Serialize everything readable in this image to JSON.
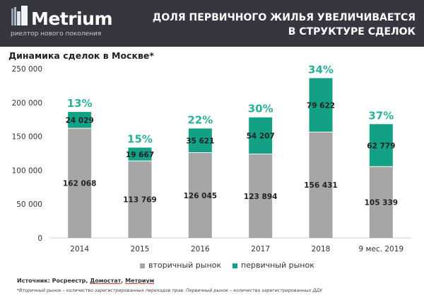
{
  "header": {
    "logo": "Metrium",
    "logo_tagline": "риелтор нового поколения",
    "title_line1": "ДОЛЯ ПЕРВИЧНОГО ЖИЛЬЯ УВЕЛИЧИВАЕТСЯ",
    "title_line2": "В СТРУКТУРЕ СДЕЛОК"
  },
  "colors": {
    "secondary": "#a6a6a6",
    "primary": "#12a185",
    "percent": "#2bb19a",
    "header_bg": "#363640"
  },
  "chart_data": {
    "type": "bar",
    "stacked": true,
    "title": "Динамика сделок в Москве*",
    "categories": [
      "2014",
      "2015",
      "2016",
      "2017",
      "2018",
      "9 мес. 2019"
    ],
    "series": [
      {
        "name": "вторичный рынок",
        "values": [
          162068,
          113769,
          126045,
          123894,
          156431,
          105339
        ],
        "labels": [
          "162 068",
          "113 769",
          "126 045",
          "123 894",
          "156 431",
          "105 339"
        ]
      },
      {
        "name": "первичный рынок",
        "values": [
          24029,
          19667,
          35621,
          54207,
          79622,
          62779
        ],
        "labels": [
          "24 029",
          "19 667",
          "35 621",
          "54 207",
          "79 622",
          "62 779"
        ]
      }
    ],
    "primary_share_labels": [
      "13%",
      "15%",
      "22%",
      "30%",
      "34%",
      "37%"
    ],
    "ylim": [
      0,
      250000
    ],
    "yticks": [
      0,
      50000,
      100000,
      150000,
      200000,
      250000
    ],
    "ytick_labels": [
      "0",
      "50 000",
      "100 000",
      "150 000",
      "200 000",
      "250 000"
    ],
    "grid": false,
    "legend": "bottom"
  },
  "footer": {
    "source_prefix": "Источник: Росреестр, ",
    "source_link1": "Домостат",
    "source_sep": ", ",
    "source_link2": "Метриум",
    "note": "*Вторичный рынок – количество зарегистрированных переходов прав. Первичный рынок – количество зарегистрированных ДДУ"
  }
}
